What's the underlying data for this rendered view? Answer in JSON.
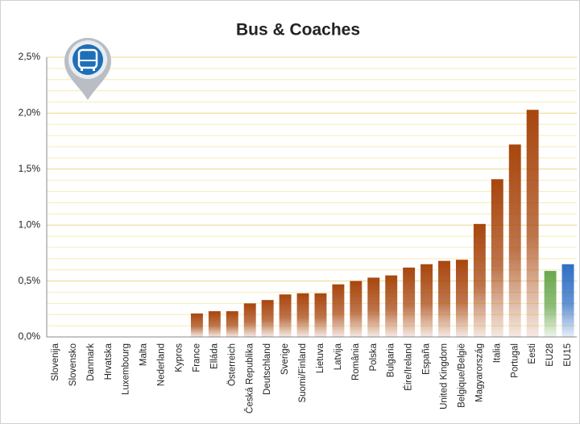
{
  "chart_data": {
    "type": "bar",
    "title": "Bus & Coaches",
    "categories": [
      "Slovenija",
      "Slovensko",
      "Danmark",
      "Hrvatska",
      "Luxembourg",
      "Malta",
      "Nederland",
      "Kypros",
      "France",
      "Elláda",
      "Österreich",
      "Česká Republika",
      "Deutschland",
      "Sverige",
      "Suomi/Finland",
      "Lietuva",
      "Latvija",
      "România",
      "Polska",
      "Bulgaria",
      "Éire/Ireland",
      "España",
      "United Kingdom",
      "Belgique/België",
      "Magyarország",
      "Italia",
      "Portugal",
      "Eesti",
      "EU28",
      "EU15"
    ],
    "values": [
      0,
      0,
      0,
      0,
      0,
      0,
      0,
      0,
      0.21,
      0.23,
      0.23,
      0.3,
      0.33,
      0.38,
      0.39,
      0.39,
      0.47,
      0.5,
      0.53,
      0.55,
      0.62,
      0.65,
      0.68,
      0.69,
      1.01,
      1.41,
      1.72,
      2.03,
      0.59,
      0.65
    ],
    "colors": [
      "#a8460e",
      "#a8460e",
      "#a8460e",
      "#a8460e",
      "#a8460e",
      "#a8460e",
      "#a8460e",
      "#a8460e",
      "#a8460e",
      "#a8460e",
      "#a8460e",
      "#a8460e",
      "#a8460e",
      "#a8460e",
      "#a8460e",
      "#a8460e",
      "#a8460e",
      "#a8460e",
      "#a8460e",
      "#a8460e",
      "#a8460e",
      "#a8460e",
      "#a8460e",
      "#a8460e",
      "#a8460e",
      "#a8460e",
      "#a8460e",
      "#a8460e",
      "#6aa84f",
      "#2f6fc4"
    ],
    "ylim": [
      0,
      2.5
    ],
    "yticks": [
      {
        "value": 0,
        "label": "0,0%"
      },
      {
        "value": 0.5,
        "label": "0,5%"
      },
      {
        "value": 1,
        "label": "1,0%"
      },
      {
        "value": 1.5,
        "label": "1,5%"
      },
      {
        "value": 2,
        "label": "2,0%"
      },
      {
        "value": 2.5,
        "label": "2,5%"
      }
    ],
    "minor_yticks": [
      0.1,
      0.2,
      0.3,
      0.4,
      0.6,
      0.7,
      0.8,
      0.9,
      1.1,
      1.2,
      1.3,
      1.4,
      1.6,
      1.7,
      1.8,
      1.9,
      2.1,
      2.2,
      2.3,
      2.4
    ],
    "grid": true
  }
}
